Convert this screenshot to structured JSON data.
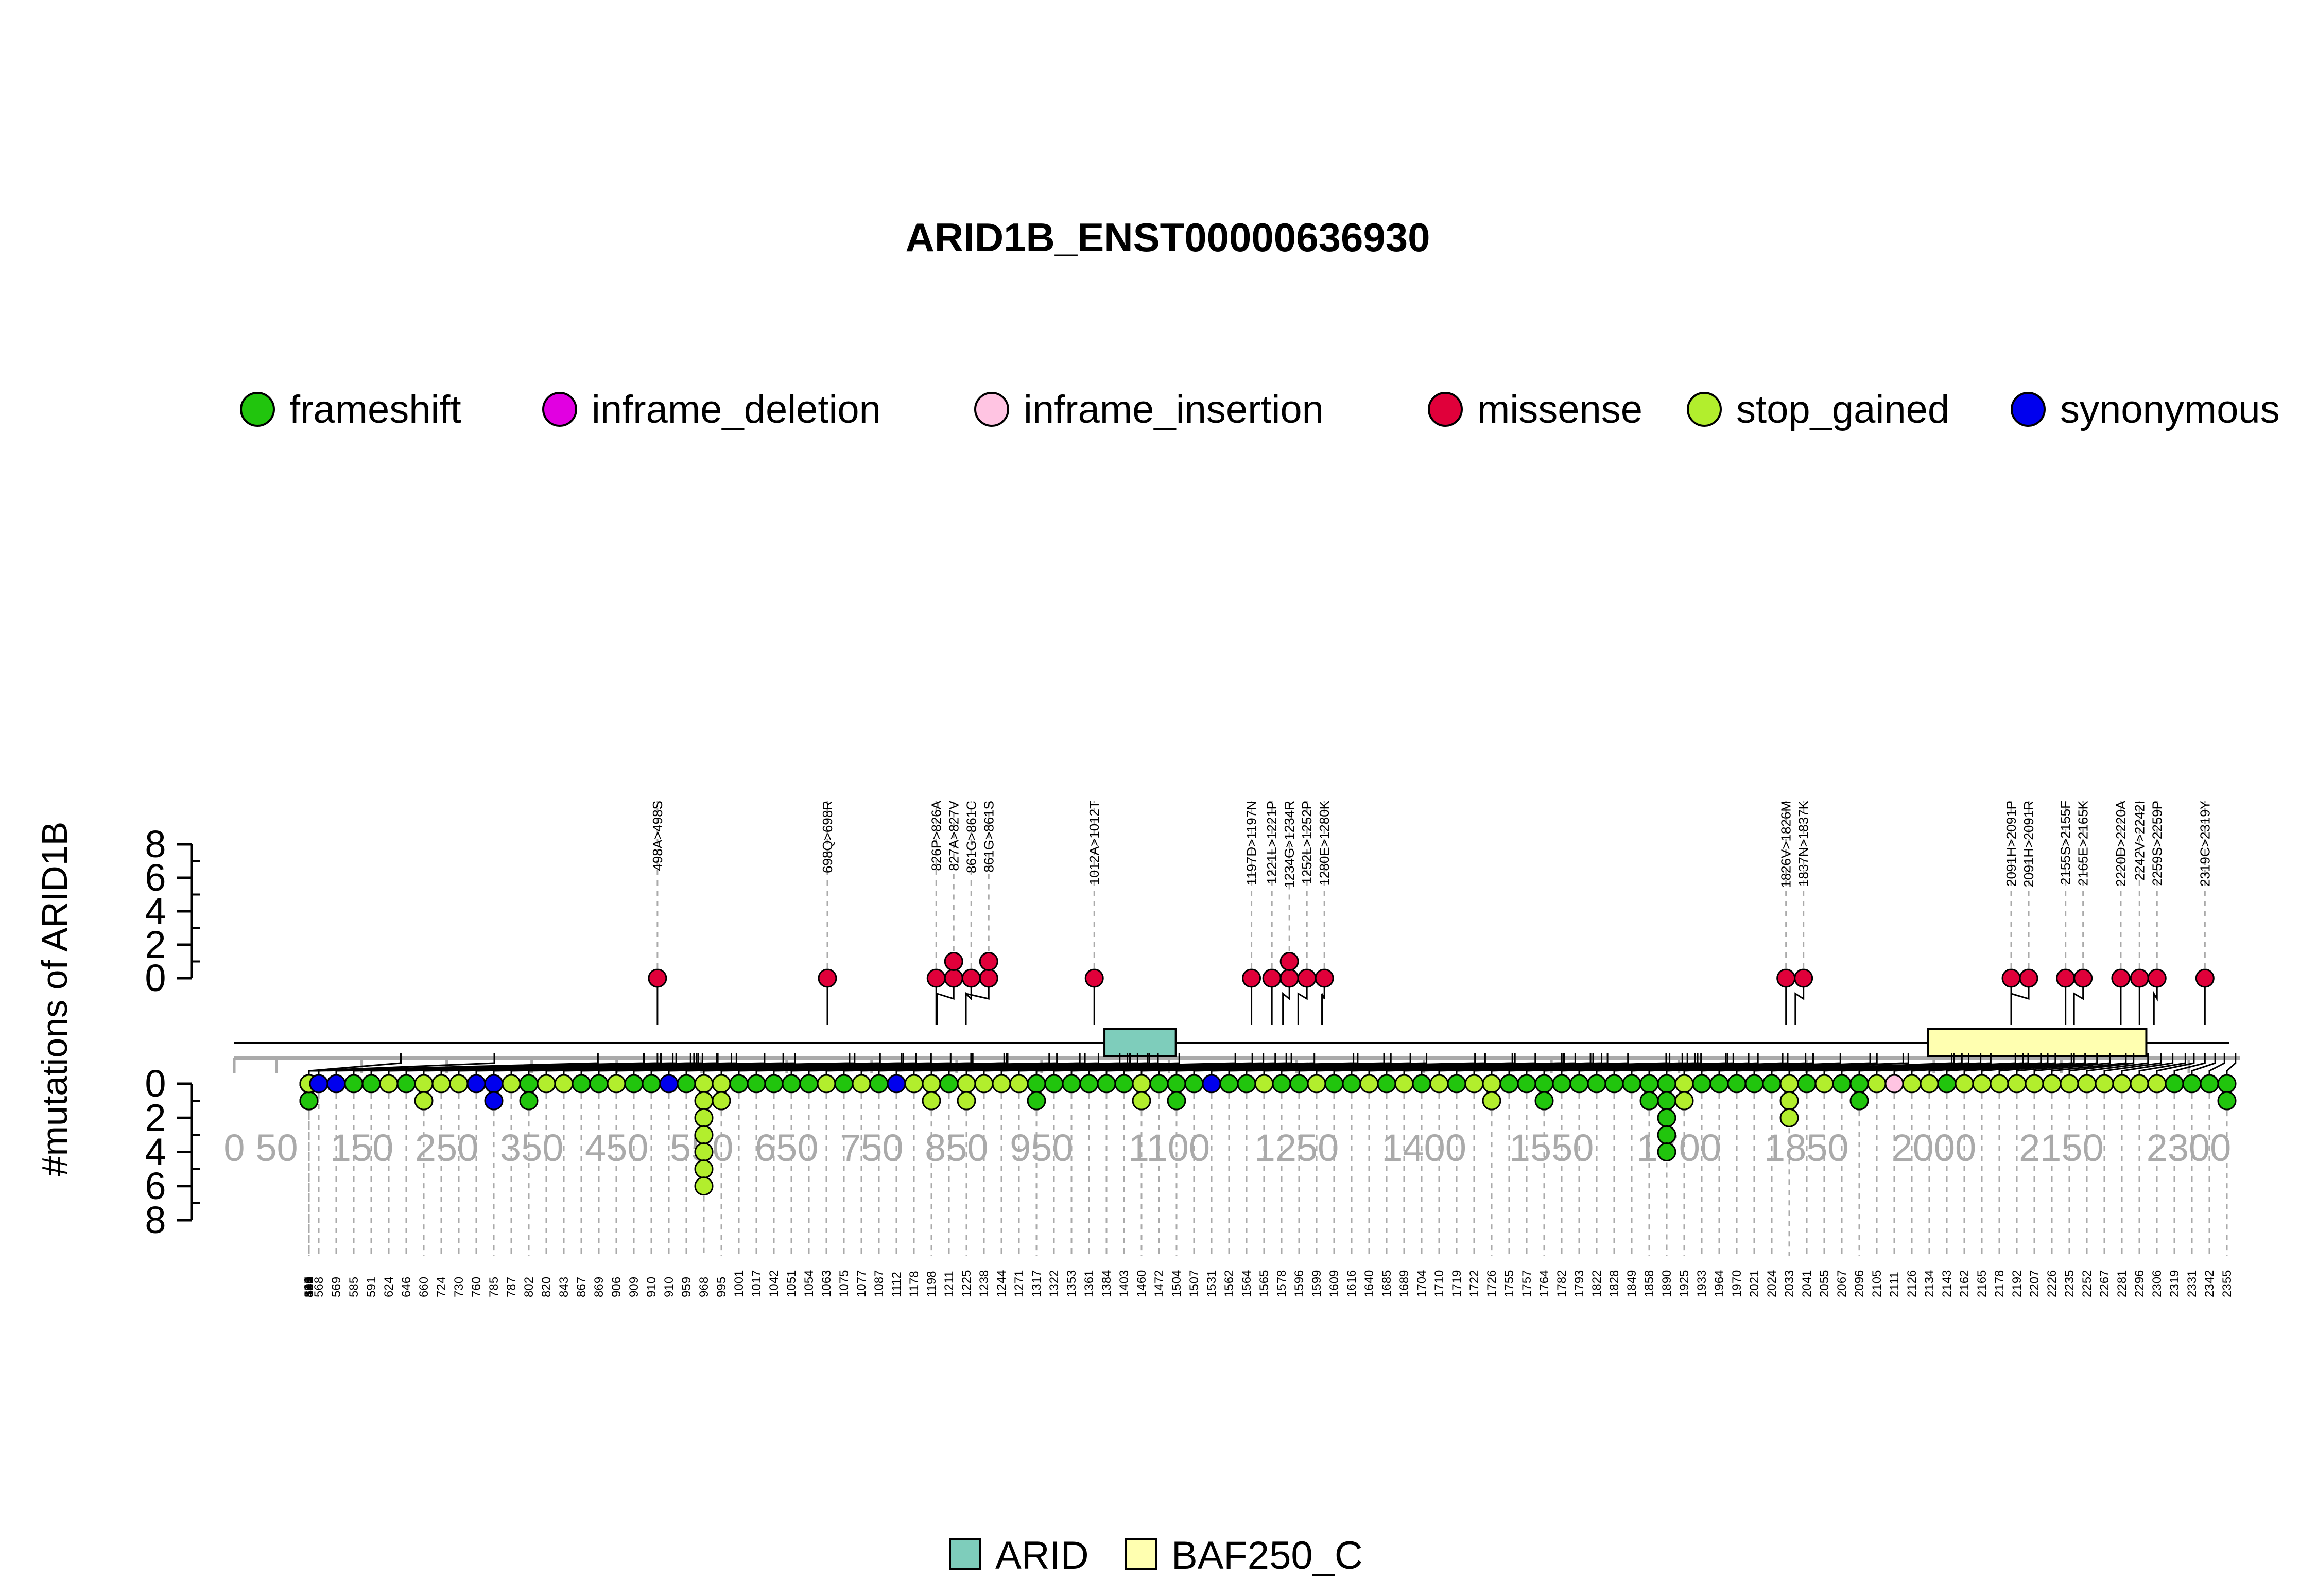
{
  "colors": {
    "frameshift": "#21c50d",
    "inframe_deletion": "#e100e1",
    "inframe_insertion": "#ffc4e2",
    "missense": "#e0003a",
    "stop_gained": "#b2ee2d",
    "synonymous": "#0000ee",
    "ARID": "#7ecdbb",
    "BAF250_C": "#ffffb0",
    "axis": "#000000",
    "position_axis": "#aaaaaa",
    "guide": "#aaaaaa"
  },
  "chart_data": {
    "type": "lollipop",
    "title": "ARID1B_ENST00000636930",
    "ylabel": "#mutations of ARID1B",
    "top_axis": {
      "ticks": [
        "8",
        "6",
        "4",
        "2",
        "0"
      ],
      "ylim": [
        0,
        8
      ]
    },
    "bottom_axis": {
      "ticks": [
        "0",
        "2",
        "4",
        "6",
        "8"
      ],
      "ylim": [
        0,
        8
      ]
    },
    "x_ticks": [
      0,
      50,
      150,
      250,
      350,
      450,
      550,
      650,
      750,
      850,
      950,
      1100,
      1250,
      1400,
      1550,
      1700,
      1850,
      2000,
      2150,
      2300
    ],
    "protein_length": 2360,
    "legend": [
      {
        "key": "frameshift",
        "label": "frameshift"
      },
      {
        "key": "inframe_deletion",
        "label": "inframe_deletion"
      },
      {
        "key": "inframe_insertion",
        "label": "inframe_insertion"
      },
      {
        "key": "missense",
        "label": "missense"
      },
      {
        "key": "stop_gained",
        "label": "stop_gained"
      },
      {
        "key": "synonymous",
        "label": "synonymous"
      }
    ],
    "domains": [
      {
        "name": "ARID",
        "start": 1024,
        "end": 1108
      },
      {
        "name": "BAF250_C",
        "start": 1993,
        "end": 2250
      }
    ],
    "domain_legend": [
      {
        "key": "ARID",
        "label": "ARID"
      },
      {
        "key": "BAF250_C",
        "label": "BAF250_C"
      }
    ],
    "top_mutations": [
      {
        "label": "498A>498S",
        "pos": 498,
        "stack": [
          "missense"
        ]
      },
      {
        "label": "698Q>698R",
        "pos": 698,
        "stack": [
          "missense"
        ]
      },
      {
        "label": "826P>826A",
        "pos": 826,
        "stack": [
          "missense"
        ]
      },
      {
        "label": "827A>827V",
        "pos": 827,
        "stack": [
          "missense",
          "missense"
        ]
      },
      {
        "label": "861G>861C",
        "pos": 861,
        "stack": [
          "missense"
        ]
      },
      {
        "label": "861G>861S",
        "pos": 861,
        "stack": [
          "missense",
          "missense"
        ]
      },
      {
        "label": "1012A>1012T",
        "pos": 1012,
        "stack": [
          "missense"
        ]
      },
      {
        "label": "1197D>1197N",
        "pos": 1197,
        "stack": [
          "missense"
        ]
      },
      {
        "label": "1221L>1221P",
        "pos": 1221,
        "stack": [
          "missense"
        ]
      },
      {
        "label": "1234G>1234R",
        "pos": 1234,
        "stack": [
          "missense",
          "missense"
        ]
      },
      {
        "label": "1252L>1252P",
        "pos": 1252,
        "stack": [
          "missense"
        ]
      },
      {
        "label": "1280E>1280K",
        "pos": 1280,
        "stack": [
          "missense"
        ]
      },
      {
        "label": "1826V>1826M",
        "pos": 1826,
        "stack": [
          "missense"
        ]
      },
      {
        "label": "1837N>1837K",
        "pos": 1837,
        "stack": [
          "missense"
        ]
      },
      {
        "label": "2091H>2091P",
        "pos": 2091,
        "stack": [
          "missense"
        ]
      },
      {
        "label": "2091H>2091R",
        "pos": 2091,
        "stack": [
          "missense"
        ]
      },
      {
        "label": "2155S>2155F",
        "pos": 2155,
        "stack": [
          "missense"
        ]
      },
      {
        "label": "2165E>2165K",
        "pos": 2165,
        "stack": [
          "missense"
        ]
      },
      {
        "label": "2220D>2220A",
        "pos": 2220,
        "stack": [
          "missense"
        ]
      },
      {
        "label": "2242V>2242I",
        "pos": 2242,
        "stack": [
          "missense"
        ]
      },
      {
        "label": "2259S>2259P",
        "pos": 2259,
        "stack": [
          "missense"
        ]
      },
      {
        "label": "2319C>2319Y",
        "pos": 2319,
        "stack": [
          "missense"
        ]
      }
    ],
    "bottom_mutations": [
      {
        "label": "196",
        "pos": 196,
        "stack": [
          "inframe_deletion"
        ]
      },
      {
        "label": "306",
        "pos": 306,
        "stack": [
          "frameshift"
        ]
      },
      {
        "label": "428",
        "pos": 428,
        "stack": [
          "frameshift"
        ]
      },
      {
        "label": "482",
        "pos": 482,
        "stack": [
          "frameshift",
          "frameshift"
        ]
      },
      {
        "label": "498",
        "pos": 498,
        "stack": [
          "frameshift"
        ]
      },
      {
        "label": "502",
        "pos": 502,
        "stack": [
          "frameshift"
        ]
      },
      {
        "label": "516",
        "pos": 516,
        "stack": [
          "frameshift"
        ]
      },
      {
        "label": "520",
        "pos": 520,
        "stack": [
          "stop_gained"
        ]
      },
      {
        "label": "537",
        "pos": 537,
        "stack": [
          "stop_gained",
          "stop_gained"
        ]
      },
      {
        "label": "541",
        "pos": 541,
        "stack": [
          "frameshift"
        ]
      },
      {
        "label": "544",
        "pos": 544,
        "stack": [
          "frameshift"
        ]
      },
      {
        "label": "546",
        "pos": 546,
        "stack": [
          "frameshift",
          "frameshift"
        ]
      },
      {
        "label": "551",
        "pos": 551,
        "stack": [
          "stop_gained"
        ]
      },
      {
        "label": "568",
        "pos": 568,
        "stack": [
          "synonymous"
        ]
      },
      {
        "label": "569",
        "pos": 569,
        "stack": [
          "synonymous"
        ]
      },
      {
        "label": "585",
        "pos": 585,
        "stack": [
          "frameshift"
        ]
      },
      {
        "label": "591",
        "pos": 591,
        "stack": [
          "frameshift"
        ]
      },
      {
        "label": "624",
        "pos": 624,
        "stack": [
          "stop_gained"
        ]
      },
      {
        "label": "646",
        "pos": 646,
        "stack": [
          "frameshift"
        ]
      },
      {
        "label": "660",
        "pos": 660,
        "stack": [
          "stop_gained",
          "stop_gained"
        ]
      },
      {
        "label": "724",
        "pos": 724,
        "stack": [
          "stop_gained"
        ]
      },
      {
        "label": "730",
        "pos": 730,
        "stack": [
          "stop_gained"
        ]
      },
      {
        "label": "760",
        "pos": 760,
        "stack": [
          "synonymous"
        ]
      },
      {
        "label": "785",
        "pos": 785,
        "stack": [
          "synonymous",
          "synonymous"
        ]
      },
      {
        "label": "787",
        "pos": 787,
        "stack": [
          "stop_gained"
        ]
      },
      {
        "label": "802",
        "pos": 802,
        "stack": [
          "frameshift",
          "frameshift"
        ]
      },
      {
        "label": "820",
        "pos": 820,
        "stack": [
          "stop_gained"
        ]
      },
      {
        "label": "843",
        "pos": 843,
        "stack": [
          "stop_gained"
        ]
      },
      {
        "label": "867",
        "pos": 867,
        "stack": [
          "frameshift"
        ]
      },
      {
        "label": "869",
        "pos": 869,
        "stack": [
          "frameshift"
        ]
      },
      {
        "label": "906",
        "pos": 906,
        "stack": [
          "stop_gained"
        ]
      },
      {
        "label": "909",
        "pos": 909,
        "stack": [
          "frameshift"
        ]
      },
      {
        "label": "910",
        "pos": 910,
        "stack": [
          "frameshift"
        ]
      },
      {
        "label": "910",
        "pos": 910,
        "stack": [
          "synonymous"
        ]
      },
      {
        "label": "959",
        "pos": 959,
        "stack": [
          "frameshift"
        ]
      },
      {
        "label": "968",
        "pos": 968,
        "stack": [
          "stop_gained",
          "stop_gained",
          "stop_gained",
          "stop_gained",
          "stop_gained",
          "stop_gained",
          "stop_gained"
        ]
      },
      {
        "label": "995",
        "pos": 995,
        "stack": [
          "stop_gained",
          "stop_gained"
        ]
      },
      {
        "label": "1001",
        "pos": 1001,
        "stack": [
          "frameshift"
        ]
      },
      {
        "label": "1017",
        "pos": 1017,
        "stack": [
          "frameshift"
        ]
      },
      {
        "label": "1042",
        "pos": 1042,
        "stack": [
          "frameshift"
        ]
      },
      {
        "label": "1051",
        "pos": 1051,
        "stack": [
          "frameshift"
        ]
      },
      {
        "label": "1054",
        "pos": 1054,
        "stack": [
          "frameshift"
        ]
      },
      {
        "label": "1063",
        "pos": 1063,
        "stack": [
          "stop_gained"
        ]
      },
      {
        "label": "1075",
        "pos": 1075,
        "stack": [
          "frameshift"
        ]
      },
      {
        "label": "1077",
        "pos": 1077,
        "stack": [
          "stop_gained"
        ]
      },
      {
        "label": "1087",
        "pos": 1087,
        "stack": [
          "frameshift"
        ]
      },
      {
        "label": "1112",
        "pos": 1112,
        "stack": [
          "synonymous"
        ]
      },
      {
        "label": "1178",
        "pos": 1178,
        "stack": [
          "stop_gained"
        ]
      },
      {
        "label": "1198",
        "pos": 1198,
        "stack": [
          "stop_gained",
          "stop_gained"
        ]
      },
      {
        "label": "1211",
        "pos": 1211,
        "stack": [
          "frameshift"
        ]
      },
      {
        "label": "1225",
        "pos": 1225,
        "stack": [
          "stop_gained",
          "stop_gained"
        ]
      },
      {
        "label": "1238",
        "pos": 1238,
        "stack": [
          "stop_gained"
        ]
      },
      {
        "label": "1244",
        "pos": 1244,
        "stack": [
          "stop_gained"
        ]
      },
      {
        "label": "1271",
        "pos": 1271,
        "stack": [
          "stop_gained"
        ]
      },
      {
        "label": "1317",
        "pos": 1317,
        "stack": [
          "frameshift",
          "frameshift"
        ]
      },
      {
        "label": "1322",
        "pos": 1322,
        "stack": [
          "frameshift"
        ]
      },
      {
        "label": "1353",
        "pos": 1353,
        "stack": [
          "frameshift"
        ]
      },
      {
        "label": "1361",
        "pos": 1361,
        "stack": [
          "frameshift"
        ]
      },
      {
        "label": "1384",
        "pos": 1384,
        "stack": [
          "frameshift"
        ]
      },
      {
        "label": "1403",
        "pos": 1403,
        "stack": [
          "frameshift"
        ]
      },
      {
        "label": "1460",
        "pos": 1460,
        "stack": [
          "stop_gained",
          "stop_gained"
        ]
      },
      {
        "label": "1472",
        "pos": 1472,
        "stack": [
          "frameshift"
        ]
      },
      {
        "label": "1504",
        "pos": 1504,
        "stack": [
          "frameshift",
          "frameshift"
        ]
      },
      {
        "label": "1507",
        "pos": 1507,
        "stack": [
          "frameshift"
        ]
      },
      {
        "label": "1531",
        "pos": 1531,
        "stack": [
          "synonymous"
        ]
      },
      {
        "label": "1562",
        "pos": 1562,
        "stack": [
          "frameshift"
        ]
      },
      {
        "label": "1564",
        "pos": 1564,
        "stack": [
          "frameshift"
        ]
      },
      {
        "label": "1565",
        "pos": 1565,
        "stack": [
          "stop_gained"
        ]
      },
      {
        "label": "1578",
        "pos": 1578,
        "stack": [
          "frameshift"
        ]
      },
      {
        "label": "1596",
        "pos": 1596,
        "stack": [
          "frameshift"
        ]
      },
      {
        "label": "1599",
        "pos": 1599,
        "stack": [
          "stop_gained"
        ]
      },
      {
        "label": "1609",
        "pos": 1609,
        "stack": [
          "frameshift"
        ]
      },
      {
        "label": "1616",
        "pos": 1616,
        "stack": [
          "frameshift"
        ]
      },
      {
        "label": "1640",
        "pos": 1640,
        "stack": [
          "stop_gained"
        ]
      },
      {
        "label": "1685",
        "pos": 1685,
        "stack": [
          "frameshift"
        ]
      },
      {
        "label": "1689",
        "pos": 1689,
        "stack": [
          "stop_gained"
        ]
      },
      {
        "label": "1704",
        "pos": 1704,
        "stack": [
          "frameshift"
        ]
      },
      {
        "label": "1710",
        "pos": 1710,
        "stack": [
          "stop_gained"
        ]
      },
      {
        "label": "1719",
        "pos": 1719,
        "stack": [
          "frameshift"
        ]
      },
      {
        "label": "1722",
        "pos": 1722,
        "stack": [
          "stop_gained"
        ]
      },
      {
        "label": "1726",
        "pos": 1726,
        "stack": [
          "stop_gained",
          "stop_gained"
        ]
      },
      {
        "label": "1755",
        "pos": 1755,
        "stack": [
          "frameshift"
        ]
      },
      {
        "label": "1757",
        "pos": 1757,
        "stack": [
          "frameshift"
        ]
      },
      {
        "label": "1764",
        "pos": 1764,
        "stack": [
          "frameshift",
          "frameshift"
        ]
      },
      {
        "label": "1782",
        "pos": 1782,
        "stack": [
          "frameshift"
        ]
      },
      {
        "label": "1793",
        "pos": 1793,
        "stack": [
          "frameshift"
        ]
      },
      {
        "label": "1822",
        "pos": 1822,
        "stack": [
          "frameshift"
        ]
      },
      {
        "label": "1828",
        "pos": 1828,
        "stack": [
          "frameshift"
        ]
      },
      {
        "label": "1849",
        "pos": 1849,
        "stack": [
          "frameshift"
        ]
      },
      {
        "label": "1858",
        "pos": 1858,
        "stack": [
          "frameshift",
          "frameshift"
        ]
      },
      {
        "label": "1890",
        "pos": 1890,
        "stack": [
          "frameshift",
          "frameshift",
          "frameshift",
          "frameshift",
          "frameshift"
        ]
      },
      {
        "label": "1925",
        "pos": 1925,
        "stack": [
          "stop_gained",
          "stop_gained"
        ]
      },
      {
        "label": "1933",
        "pos": 1933,
        "stack": [
          "frameshift"
        ]
      },
      {
        "label": "1964",
        "pos": 1964,
        "stack": [
          "frameshift"
        ]
      },
      {
        "label": "1970",
        "pos": 1970,
        "stack": [
          "frameshift"
        ]
      },
      {
        "label": "2021",
        "pos": 2021,
        "stack": [
          "frameshift"
        ]
      },
      {
        "label": "2024",
        "pos": 2024,
        "stack": [
          "frameshift"
        ]
      },
      {
        "label": "2033",
        "pos": 2033,
        "stack": [
          "stop_gained",
          "stop_gained",
          "stop_gained"
        ]
      },
      {
        "label": "2041",
        "pos": 2041,
        "stack": [
          "frameshift"
        ]
      },
      {
        "label": "2055",
        "pos": 2055,
        "stack": [
          "stop_gained"
        ]
      },
      {
        "label": "2067",
        "pos": 2067,
        "stack": [
          "frameshift"
        ]
      },
      {
        "label": "2096",
        "pos": 2096,
        "stack": [
          "frameshift",
          "frameshift"
        ]
      },
      {
        "label": "2105",
        "pos": 2105,
        "stack": [
          "stop_gained"
        ]
      },
      {
        "label": "2111",
        "pos": 2111,
        "stack": [
          "inframe_insertion"
        ]
      },
      {
        "label": "2126",
        "pos": 2126,
        "stack": [
          "stop_gained"
        ]
      },
      {
        "label": "2134",
        "pos": 2134,
        "stack": [
          "stop_gained"
        ]
      },
      {
        "label": "2143",
        "pos": 2143,
        "stack": [
          "frameshift"
        ]
      },
      {
        "label": "2162",
        "pos": 2162,
        "stack": [
          "stop_gained"
        ]
      },
      {
        "label": "2165",
        "pos": 2165,
        "stack": [
          "stop_gained"
        ]
      },
      {
        "label": "2178",
        "pos": 2178,
        "stack": [
          "stop_gained"
        ]
      },
      {
        "label": "2192",
        "pos": 2192,
        "stack": [
          "stop_gained"
        ]
      },
      {
        "label": "2207",
        "pos": 2207,
        "stack": [
          "stop_gained"
        ]
      },
      {
        "label": "2226",
        "pos": 2226,
        "stack": [
          "stop_gained"
        ]
      },
      {
        "label": "2235",
        "pos": 2235,
        "stack": [
          "stop_gained"
        ]
      },
      {
        "label": "2252",
        "pos": 2252,
        "stack": [
          "stop_gained"
        ]
      },
      {
        "label": "2267",
        "pos": 2267,
        "stack": [
          "stop_gained"
        ]
      },
      {
        "label": "2281",
        "pos": 2281,
        "stack": [
          "stop_gained"
        ]
      },
      {
        "label": "2296",
        "pos": 2296,
        "stack": [
          "stop_gained"
        ]
      },
      {
        "label": "2306",
        "pos": 2306,
        "stack": [
          "stop_gained"
        ]
      },
      {
        "label": "2319",
        "pos": 2319,
        "stack": [
          "frameshift"
        ]
      },
      {
        "label": "2331",
        "pos": 2331,
        "stack": [
          "frameshift"
        ]
      },
      {
        "label": "2342",
        "pos": 2342,
        "stack": [
          "frameshift"
        ]
      },
      {
        "label": "2355",
        "pos": 2355,
        "stack": [
          "frameshift",
          "frameshift"
        ]
      }
    ]
  }
}
